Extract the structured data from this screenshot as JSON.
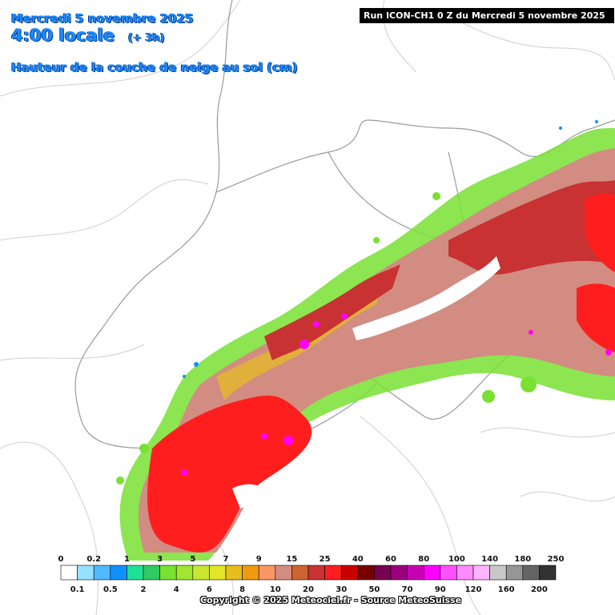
{
  "header": {
    "date": "Mercredi 5 novembre 2025",
    "time": "4:00 locale",
    "lead": "(+ 3h)",
    "parameter": "Hauteur de la couche de neige au sol (cm)"
  },
  "run_label": "Run ICON-CH1 0 Z du Mercredi 5 novembre 2025",
  "copyright": "Copyright © 2025 Meteociel.fr - Source MeteoSuisse",
  "legend": {
    "colors": [
      "#ffffff",
      "#96e1ff",
      "#50b9ff",
      "#0f91ff",
      "#1ee196",
      "#32c864",
      "#78e132",
      "#a0e632",
      "#c8e632",
      "#e1e628",
      "#e6be1e",
      "#f09b0f",
      "#fa9664",
      "#d28c82",
      "#cd6432",
      "#c83232",
      "#ff1e1e",
      "#c80000",
      "#780000",
      "#780050",
      "#9b007d",
      "#c800b4",
      "#ff00ff",
      "#ff50ff",
      "#ff8cff",
      "#ffb4ff",
      "#c8c8c8",
      "#969696",
      "#646464",
      "#323232"
    ],
    "top_labels": [
      "0",
      "0.2",
      "1",
      "3",
      "5",
      "7",
      "9",
      "15",
      "25",
      "40",
      "60",
      "80",
      "100",
      "140",
      "180",
      "250"
    ],
    "bottom_labels": [
      "0.1",
      "0.5",
      "2",
      "4",
      "6",
      "8",
      "10",
      "20",
      "30",
      "50",
      "70",
      "90",
      "120",
      "160",
      "200"
    ]
  }
}
